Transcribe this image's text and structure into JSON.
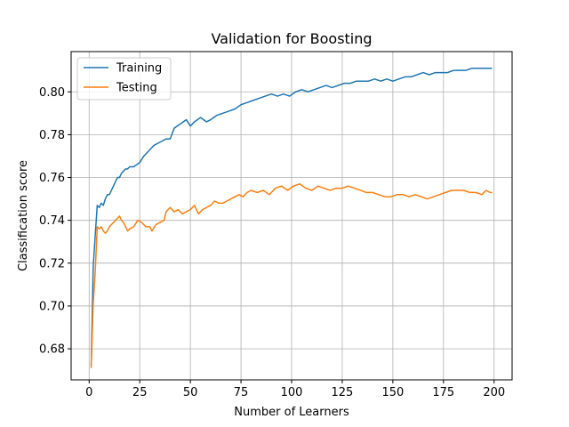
{
  "chart_data": {
    "type": "line",
    "title": "Validation for Boosting",
    "xlabel": "Number of Learners",
    "ylabel": "Classification score",
    "xlim": [
      -8.9,
      208.9
    ],
    "ylim": [
      0.6655,
      0.8188
    ],
    "xticks": [
      0,
      25,
      50,
      75,
      100,
      125,
      150,
      175,
      200
    ],
    "yticks": [
      0.68,
      0.7,
      0.72,
      0.74,
      0.76,
      0.78,
      0.8
    ],
    "ytick_labels": [
      "0.68",
      "0.70",
      "0.72",
      "0.74",
      "0.76",
      "0.78",
      "0.80"
    ],
    "grid": true,
    "legend_position": "top-left",
    "series": [
      {
        "name": "Training",
        "color": "#1f77b4",
        "points": [
          [
            1,
            0.672
          ],
          [
            2,
            0.718
          ],
          [
            3,
            0.733
          ],
          [
            4,
            0.747
          ],
          [
            5,
            0.746
          ],
          [
            6,
            0.748
          ],
          [
            7,
            0.747
          ],
          [
            8,
            0.75
          ],
          [
            9,
            0.752
          ],
          [
            10,
            0.752
          ],
          [
            11,
            0.754
          ],
          [
            12,
            0.756
          ],
          [
            13,
            0.758
          ],
          [
            14,
            0.76
          ],
          [
            15,
            0.76
          ],
          [
            16,
            0.762
          ],
          [
            17,
            0.763
          ],
          [
            18,
            0.764
          ],
          [
            19,
            0.764
          ],
          [
            20,
            0.765
          ],
          [
            22,
            0.765
          ],
          [
            25,
            0.767
          ],
          [
            27,
            0.77
          ],
          [
            30,
            0.773
          ],
          [
            32,
            0.775
          ],
          [
            34,
            0.776
          ],
          [
            36,
            0.777
          ],
          [
            38,
            0.778
          ],
          [
            40,
            0.778
          ],
          [
            42,
            0.783
          ],
          [
            45,
            0.785
          ],
          [
            48,
            0.787
          ],
          [
            50,
            0.784
          ],
          [
            52,
            0.786
          ],
          [
            55,
            0.788
          ],
          [
            58,
            0.786
          ],
          [
            60,
            0.787
          ],
          [
            63,
            0.789
          ],
          [
            66,
            0.79
          ],
          [
            69,
            0.791
          ],
          [
            72,
            0.792
          ],
          [
            75,
            0.794
          ],
          [
            78,
            0.795
          ],
          [
            81,
            0.796
          ],
          [
            84,
            0.797
          ],
          [
            87,
            0.798
          ],
          [
            90,
            0.799
          ],
          [
            93,
            0.798
          ],
          [
            96,
            0.799
          ],
          [
            99,
            0.798
          ],
          [
            102,
            0.8
          ],
          [
            105,
            0.801
          ],
          [
            108,
            0.8
          ],
          [
            111,
            0.801
          ],
          [
            114,
            0.802
          ],
          [
            117,
            0.803
          ],
          [
            120,
            0.802
          ],
          [
            123,
            0.803
          ],
          [
            126,
            0.804
          ],
          [
            129,
            0.804
          ],
          [
            132,
            0.805
          ],
          [
            135,
            0.805
          ],
          [
            138,
            0.805
          ],
          [
            141,
            0.806
          ],
          [
            144,
            0.805
          ],
          [
            147,
            0.806
          ],
          [
            150,
            0.805
          ],
          [
            153,
            0.806
          ],
          [
            156,
            0.807
          ],
          [
            159,
            0.807
          ],
          [
            162,
            0.808
          ],
          [
            165,
            0.809
          ],
          [
            168,
            0.808
          ],
          [
            171,
            0.809
          ],
          [
            174,
            0.809
          ],
          [
            177,
            0.809
          ],
          [
            180,
            0.81
          ],
          [
            183,
            0.81
          ],
          [
            186,
            0.81
          ],
          [
            189,
            0.811
          ],
          [
            192,
            0.811
          ],
          [
            195,
            0.811
          ],
          [
            197,
            0.811
          ],
          [
            199,
            0.811
          ]
        ]
      },
      {
        "name": "Testing",
        "color": "#ff7f0e",
        "points": [
          [
            1,
            0.671
          ],
          [
            2,
            0.701
          ],
          [
            3,
            0.716
          ],
          [
            4,
            0.737
          ],
          [
            5,
            0.736
          ],
          [
            6,
            0.737
          ],
          [
            7,
            0.735
          ],
          [
            8,
            0.734
          ],
          [
            9,
            0.735
          ],
          [
            10,
            0.737
          ],
          [
            12,
            0.739
          ],
          [
            14,
            0.741
          ],
          [
            15,
            0.742
          ],
          [
            16,
            0.74
          ],
          [
            17,
            0.739
          ],
          [
            18,
            0.737
          ],
          [
            19,
            0.735
          ],
          [
            20,
            0.736
          ],
          [
            22,
            0.737
          ],
          [
            24,
            0.74
          ],
          [
            26,
            0.739
          ],
          [
            28,
            0.737
          ],
          [
            30,
            0.737
          ],
          [
            31,
            0.735
          ],
          [
            33,
            0.738
          ],
          [
            35,
            0.739
          ],
          [
            37,
            0.74
          ],
          [
            38,
            0.744
          ],
          [
            39,
            0.745
          ],
          [
            40,
            0.746
          ],
          [
            42,
            0.744
          ],
          [
            44,
            0.745
          ],
          [
            46,
            0.743
          ],
          [
            48,
            0.744
          ],
          [
            50,
            0.745
          ],
          [
            52,
            0.747
          ],
          [
            54,
            0.743
          ],
          [
            56,
            0.745
          ],
          [
            58,
            0.746
          ],
          [
            60,
            0.747
          ],
          [
            62,
            0.749
          ],
          [
            64,
            0.748
          ],
          [
            66,
            0.748
          ],
          [
            68,
            0.749
          ],
          [
            70,
            0.75
          ],
          [
            72,
            0.751
          ],
          [
            74,
            0.752
          ],
          [
            76,
            0.751
          ],
          [
            78,
            0.753
          ],
          [
            80,
            0.754
          ],
          [
            83,
            0.753
          ],
          [
            86,
            0.754
          ],
          [
            89,
            0.752
          ],
          [
            92,
            0.755
          ],
          [
            95,
            0.756
          ],
          [
            98,
            0.754
          ],
          [
            101,
            0.756
          ],
          [
            104,
            0.757
          ],
          [
            107,
            0.755
          ],
          [
            110,
            0.754
          ],
          [
            113,
            0.756
          ],
          [
            116,
            0.755
          ],
          [
            119,
            0.754
          ],
          [
            122,
            0.755
          ],
          [
            125,
            0.755
          ],
          [
            128,
            0.756
          ],
          [
            131,
            0.755
          ],
          [
            134,
            0.754
          ],
          [
            137,
            0.753
          ],
          [
            140,
            0.753
          ],
          [
            143,
            0.752
          ],
          [
            146,
            0.751
          ],
          [
            149,
            0.751
          ],
          [
            152,
            0.752
          ],
          [
            155,
            0.752
          ],
          [
            158,
            0.751
          ],
          [
            161,
            0.752
          ],
          [
            164,
            0.751
          ],
          [
            167,
            0.75
          ],
          [
            170,
            0.751
          ],
          [
            173,
            0.752
          ],
          [
            176,
            0.753
          ],
          [
            179,
            0.754
          ],
          [
            182,
            0.754
          ],
          [
            185,
            0.754
          ],
          [
            188,
            0.753
          ],
          [
            191,
            0.753
          ],
          [
            194,
            0.752
          ],
          [
            196,
            0.754
          ],
          [
            198,
            0.753
          ],
          [
            199,
            0.753
          ]
        ]
      }
    ]
  }
}
